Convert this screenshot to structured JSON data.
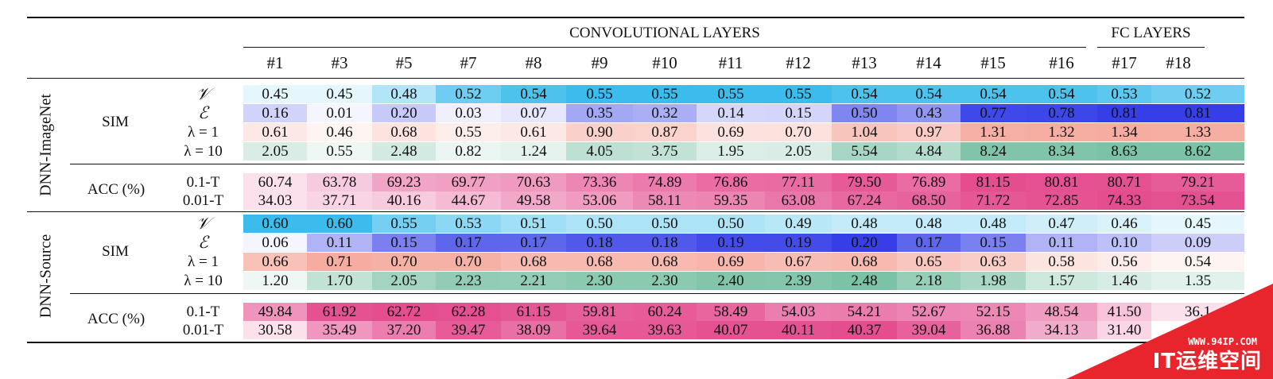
{
  "col_groups": {
    "conv": "CONVOLUTIONAL LAYERS",
    "fc": "FC LAYERS"
  },
  "columns": [
    "#1",
    "#3",
    "#5",
    "#7",
    "#8",
    "#9",
    "#10",
    "#11",
    "#12",
    "#13",
    "#14",
    "#15",
    "#16",
    "#17",
    "#18"
  ],
  "groups": [
    {
      "name": "DNN-ImageNet",
      "sim_label": "SIM",
      "acc_label": "ACC (%)",
      "rows": [
        {
          "label": "𝒱",
          "kind": "V",
          "values": [
            "0.45",
            "0.45",
            "0.48",
            "0.52",
            "0.54",
            "0.55",
            "0.55",
            "0.55",
            "0.55",
            "0.54",
            "0.54",
            "0.54",
            "0.54",
            "0.53",
            "0.52"
          ]
        },
        {
          "label": "ℰ",
          "kind": "E",
          "values": [
            "0.16",
            "0.01",
            "0.20",
            "0.03",
            "0.07",
            "0.35",
            "0.32",
            "0.14",
            "0.15",
            "0.50",
            "0.43",
            "0.77",
            "0.78",
            "0.81",
            "0.81"
          ]
        },
        {
          "label": "λ = 1",
          "kind": "L1",
          "values": [
            "0.61",
            "0.46",
            "0.68",
            "0.55",
            "0.61",
            "0.90",
            "0.87",
            "0.69",
            "0.70",
            "1.04",
            "0.97",
            "1.31",
            "1.32",
            "1.34",
            "1.33"
          ]
        },
        {
          "label": "λ = 10",
          "kind": "L10",
          "values": [
            "2.05",
            "0.55",
            "2.48",
            "0.82",
            "1.24",
            "4.05",
            "3.75",
            "1.95",
            "2.05",
            "5.54",
            "4.84",
            "8.24",
            "8.34",
            "8.63",
            "8.62"
          ]
        },
        {
          "label": "0.1-T",
          "kind": "A1",
          "values": [
            "60.74",
            "63.78",
            "69.23",
            "69.77",
            "70.63",
            "73.36",
            "74.89",
            "76.86",
            "77.11",
            "79.50",
            "76.89",
            "81.15",
            "80.81",
            "80.71",
            "79.21"
          ]
        },
        {
          "label": "0.01-T",
          "kind": "A2",
          "values": [
            "34.03",
            "37.71",
            "40.16",
            "44.67",
            "49.58",
            "53.06",
            "58.11",
            "59.35",
            "63.08",
            "67.24",
            "68.50",
            "71.72",
            "72.85",
            "74.33",
            "73.54"
          ]
        }
      ]
    },
    {
      "name": "DNN-Source",
      "sim_label": "SIM",
      "acc_label": "ACC (%)",
      "rows": [
        {
          "label": "𝒱",
          "kind": "V",
          "values": [
            "0.60",
            "0.60",
            "0.55",
            "0.53",
            "0.51",
            "0.50",
            "0.50",
            "0.50",
            "0.49",
            "0.48",
            "0.48",
            "0.48",
            "0.47",
            "0.46",
            "0.45"
          ]
        },
        {
          "label": "ℰ",
          "kind": "E",
          "values": [
            "0.06",
            "0.11",
            "0.15",
            "0.17",
            "0.17",
            "0.18",
            "0.18",
            "0.19",
            "0.19",
            "0.20",
            "0.17",
            "0.15",
            "0.11",
            "0.10",
            "0.09"
          ]
        },
        {
          "label": "λ = 1",
          "kind": "L1",
          "values": [
            "0.66",
            "0.71",
            "0.70",
            "0.70",
            "0.68",
            "0.68",
            "0.68",
            "0.69",
            "0.67",
            "0.68",
            "0.65",
            "0.63",
            "0.58",
            "0.56",
            "0.54"
          ]
        },
        {
          "label": "λ = 10",
          "kind": "L10",
          "values": [
            "1.20",
            "1.70",
            "2.05",
            "2.23",
            "2.21",
            "2.30",
            "2.30",
            "2.40",
            "2.39",
            "2.48",
            "2.18",
            "1.98",
            "1.57",
            "1.46",
            "1.35"
          ]
        },
        {
          "label": "0.1-T",
          "kind": "A1",
          "values": [
            "49.84",
            "61.92",
            "62.72",
            "62.28",
            "61.15",
            "59.81",
            "60.24",
            "58.49",
            "54.03",
            "54.21",
            "52.67",
            "52.15",
            "48.54",
            "41.50",
            "36.1"
          ]
        },
        {
          "label": "0.01-T",
          "kind": "A2",
          "values": [
            "30.58",
            "35.49",
            "37.20",
            "39.47",
            "38.09",
            "39.64",
            "39.63",
            "40.07",
            "40.11",
            "40.37",
            "39.04",
            "36.88",
            "34.13",
            "31.40",
            ""
          ]
        }
      ]
    }
  ],
  "colors": {
    "V": "#2ab6ea",
    "E": "#2b35e6",
    "L1": "#f07c6a",
    "L10": "#2f9e72",
    "A": "#e13a83"
  },
  "watermark": {
    "url": "WWW.94IP.COM",
    "text": "IT运维空间"
  }
}
